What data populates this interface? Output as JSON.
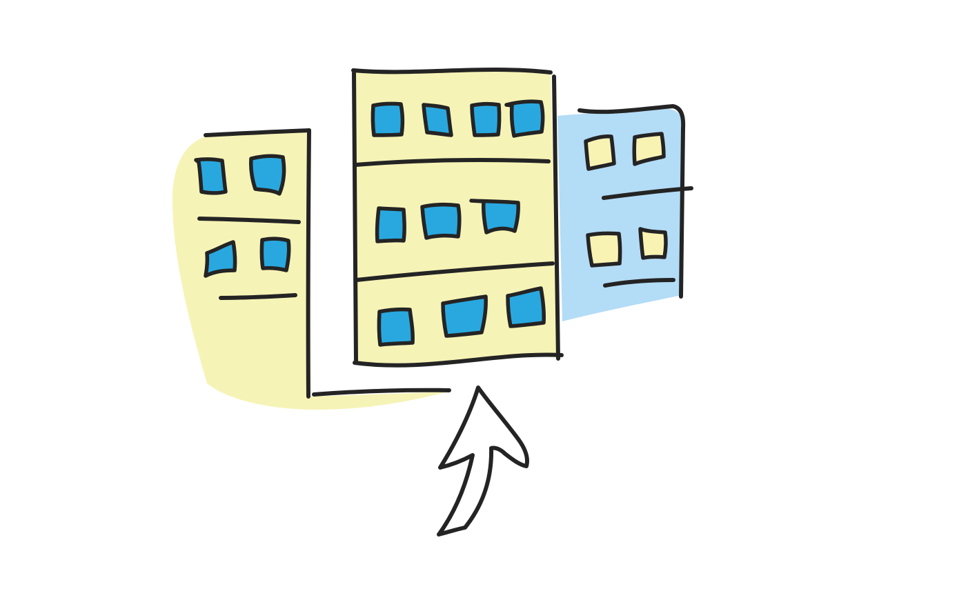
{
  "colors": {
    "ink": "#242424",
    "yellow_board": "#f6f3b6",
    "blue_board": "#b3dcf6",
    "blue_note": "#29a8e0",
    "yellow_note": "#f9f3b3",
    "arrow": "#fff200"
  },
  "icons": {
    "left_board": "kanban-board-icon",
    "center_board": "kanban-board-icon",
    "right_board": "kanban-board-icon",
    "arrow": "up-arrow-icon"
  },
  "boards": {
    "left": {
      "rows": 2,
      "notes_per_row": [
        2,
        2
      ]
    },
    "center": {
      "rows": 3,
      "notes_per_row": [
        4,
        3,
        3
      ]
    },
    "right": {
      "rows": 2,
      "notes_per_row": [
        2,
        2
      ]
    }
  }
}
